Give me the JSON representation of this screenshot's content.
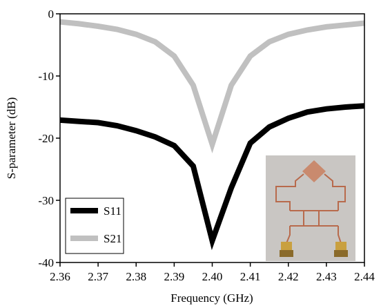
{
  "chart_data": {
    "type": "line",
    "xlabel": "Frequency (GHz)",
    "ylabel": "S-parameter (dB)",
    "x": [
      2.36,
      2.365,
      2.37,
      2.375,
      2.38,
      2.385,
      2.39,
      2.395,
      2.4,
      2.405,
      2.41,
      2.415,
      2.42,
      2.425,
      2.43,
      2.435,
      2.44
    ],
    "series": [
      {
        "name": "S11",
        "color": "#000000",
        "values": [
          -17.1,
          -17.3,
          -17.5,
          -18.0,
          -18.8,
          -19.8,
          -21.2,
          -24.5,
          -36.5,
          -28,
          -20.8,
          -18.2,
          -16.8,
          -15.8,
          -15.3,
          -15.0,
          -14.8
        ]
      },
      {
        "name": "S21",
        "color": "#c0c0c0",
        "values": [
          -1.3,
          -1.6,
          -2.0,
          -2.5,
          -3.3,
          -4.5,
          -6.8,
          -11.5,
          -21,
          -11.5,
          -6.8,
          -4.5,
          -3.3,
          -2.6,
          -2.1,
          -1.8,
          -1.5
        ]
      }
    ],
    "xlim": [
      2.36,
      2.44
    ],
    "xticks": [
      2.36,
      2.37,
      2.38,
      2.39,
      {
        "value": 2.4,
        "label": "2.40"
      },
      2.41,
      2.42,
      2.43,
      2.44
    ],
    "ylim": [
      -40,
      0
    ],
    "yticks": [
      -40,
      -30,
      -20,
      -10,
      0
    ],
    "legend": "lower-left"
  }
}
